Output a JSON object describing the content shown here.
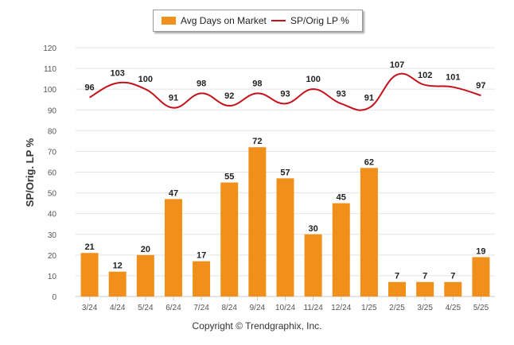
{
  "colors": {
    "bars": "#f0901a",
    "line": "#c4101a",
    "grid": "#e4e4e4",
    "axis_text": "#555555"
  },
  "legend": {
    "bar_label": "Avg Days on Market",
    "line_label": "SP/Orig LP %"
  },
  "copyright": "Copyright © Trendgraphix, Inc.",
  "chart_data": {
    "type": "bar",
    "categories": [
      "3/24",
      "4/24",
      "5/24",
      "6/24",
      "7/24",
      "8/24",
      "9/24",
      "10/24",
      "11/24",
      "12/24",
      "1/25",
      "2/25",
      "3/25",
      "4/25",
      "5/25"
    ],
    "series": [
      {
        "name": "Avg Days on Market",
        "type": "bar",
        "values": [
          21,
          12,
          20,
          47,
          17,
          55,
          72,
          57,
          30,
          45,
          62,
          7,
          7,
          7,
          19
        ]
      },
      {
        "name": "SP/Orig LP %",
        "type": "line",
        "smooth": true,
        "values": [
          96,
          103,
          100,
          91,
          98,
          92,
          98,
          93,
          100,
          93,
          91,
          107,
          102,
          101,
          97
        ]
      }
    ],
    "ylabel": "SP/Orig. LP %",
    "ylim": [
      0,
      120
    ],
    "yticks": [
      0,
      10,
      20,
      30,
      40,
      50,
      60,
      70,
      80,
      90,
      100,
      110,
      120
    ],
    "grid": true,
    "legend_position": "top-center"
  }
}
